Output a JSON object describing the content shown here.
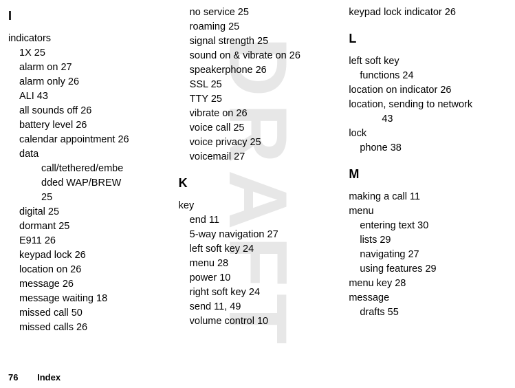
{
  "watermark": "DRAFT",
  "footer": {
    "pageNumber": "76",
    "label": "Index"
  },
  "col1": {
    "letter": "I",
    "entry": "indicators",
    "subs": [
      "1X  25",
      "alarm on  27",
      "alarm only  26",
      "ALI  43",
      "all sounds off  26",
      "battery level  26",
      "calendar appointment  26",
      "data"
    ],
    "sub2a": "call/tethered/embe",
    "sub2b": "dded WAP/BREW  ",
    "sub2c": "25",
    "subs2": [
      "digital  25",
      "dormant  25",
      "E911  26",
      "keypad lock  26",
      "location on  26",
      "message  26",
      "message waiting  18",
      "missed call  50",
      "missed calls  26"
    ]
  },
  "col2": {
    "topsubs": [
      "no service  25",
      "roaming  25",
      "signal strength  25",
      "sound on & vibrate on  26",
      "speakerphone  26",
      "SSL  25",
      "TTY  25",
      "vibrate on  26",
      "voice call  25",
      "voice privacy  25",
      "voicemail  27"
    ],
    "letter": "K",
    "entry": "key",
    "subs": [
      "end  11",
      "5-way navigation  27",
      "left soft key  24",
      "menu  28",
      "power  10",
      "right soft key  24",
      "send  11, 49",
      "volume control  10"
    ]
  },
  "col3": {
    "top": "keypad lock indicator  26",
    "letterL": "L",
    "l_entry1": "left soft key",
    "l_sub1": "functions  24",
    "l_entry2": "location on indicator  26",
    "l_entry3": "location, sending to network  ",
    "l_sub3": "43",
    "l_entry4": "lock",
    "l_sub4": "phone  38",
    "letterM": "M",
    "m_entry1": "making a call  11",
    "m_entry2": "menu",
    "m_subs": [
      "entering text  30",
      "lists  29",
      "navigating  27",
      "using features  29"
    ],
    "m_entry3": "menu key  28",
    "m_entry4": "message",
    "m_sub4": "drafts  55"
  }
}
